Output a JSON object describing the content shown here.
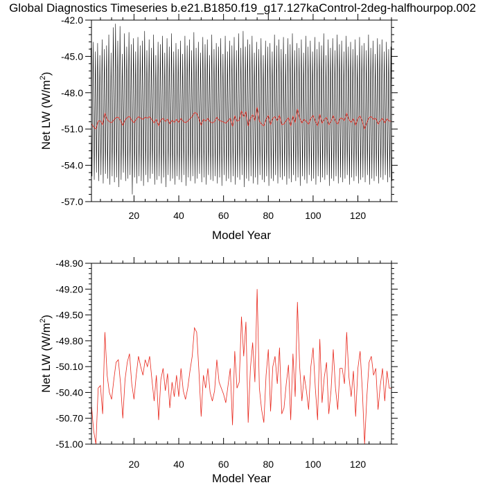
{
  "title": "Global Diagnostics Timeseries b.e21.B1850.f19_g17.127kaControl-2deg-halfhourpop.002",
  "colors": {
    "monthly": "#000000",
    "annual": "#e8261b",
    "axis": "#000000"
  },
  "chart_data": [
    {
      "type": "line",
      "xlabel": "Model Year",
      "ylabel": "Net LW (W/m2)",
      "ylabel_main": "Net LW (W/m",
      "ylabel_sup": "2",
      "ylabel_end": ")",
      "xlim": [
        1,
        135
      ],
      "ylim": [
        -57.0,
        -42.0
      ],
      "x_ticks": [
        "20",
        "40",
        "60",
        "80",
        "100",
        "120"
      ],
      "x_tick_values": [
        20,
        40,
        60,
        80,
        100,
        120
      ],
      "y_ticks": [
        "-42.0",
        "-45.0",
        "-48.0",
        "-51.0",
        "-54.0",
        "-57.0"
      ],
      "y_tick_values": [
        -42.0,
        -45.0,
        -48.0,
        -51.0,
        -54.0,
        -57.0
      ],
      "series": [
        {
          "role": "monthly",
          "description": "seasonal cycle, one max and one min per model year",
          "x": [
            1,
            2,
            3,
            4,
            5,
            6,
            7,
            8,
            9,
            10,
            11,
            12,
            13,
            14,
            15,
            16,
            17,
            18,
            19,
            20,
            21,
            22,
            23,
            24,
            25,
            26,
            27,
            28,
            29,
            30,
            31,
            32,
            33,
            34,
            35,
            36,
            37,
            38,
            39,
            40,
            41,
            42,
            43,
            44,
            45,
            46,
            47,
            48,
            49,
            50,
            51,
            52,
            53,
            54,
            55,
            56,
            57,
            58,
            59,
            60,
            61,
            62,
            63,
            64,
            65,
            66,
            67,
            68,
            69,
            70,
            71,
            72,
            73,
            74,
            75,
            76,
            77,
            78,
            79,
            80,
            81,
            82,
            83,
            84,
            85,
            86,
            87,
            88,
            89,
            90,
            91,
            92,
            93,
            94,
            95,
            96,
            97,
            98,
            99,
            100,
            101,
            102,
            103,
            104,
            105,
            106,
            107,
            108,
            109,
            110,
            111,
            112,
            113,
            114,
            115,
            116,
            117,
            118,
            119,
            120,
            121,
            122,
            123,
            124,
            125,
            126,
            127,
            128,
            129,
            130,
            131,
            132,
            133,
            134,
            135
          ],
          "max": [
            -44.3,
            -43.8,
            -44.6,
            -43.9,
            -44.9,
            -43.6,
            -44.4,
            -44.1,
            -43.2,
            -44.7,
            -42.6,
            -42.3,
            -43.7,
            -42.5,
            -44.8,
            -43.1,
            -44.2,
            -43.0,
            -44.0,
            -43.5,
            -44.6,
            -43.4,
            -44.1,
            -43.7,
            -42.9,
            -44.5,
            -43.6,
            -44.3,
            -43.2,
            -44.9,
            -43.8,
            -44.0,
            -43.3,
            -44.7,
            -43.5,
            -44.2,
            -43.1,
            -44.6,
            -43.9,
            -44.4,
            -43.7,
            -44.8,
            -43.3,
            -44.1,
            -43.6,
            -44.5,
            -43.0,
            -44.3,
            -43.8,
            -44.7,
            -43.4,
            -44.0,
            -43.6,
            -44.9,
            -43.2,
            -44.4,
            -43.9,
            -44.2,
            -43.5,
            -44.8,
            -43.3,
            -44.6,
            -43.7,
            -44.1,
            -43.4,
            -44.5,
            -43.1,
            -44.3,
            -42.9,
            -44.2,
            -43.6,
            -44.0,
            -43.3,
            -44.7,
            -43.8,
            -44.4,
            -43.5,
            -44.9,
            -43.7,
            -44.2,
            -43.9,
            -44.6,
            -43.2,
            -44.1,
            -43.6,
            -44.4,
            -43.4,
            -44.8,
            -43.5,
            -44.0,
            -43.1,
            -44.5,
            -43.9,
            -44.3,
            -43.6,
            -44.7,
            -43.3,
            -44.2,
            -43.7,
            -44.6,
            -43.4,
            -44.4,
            -43.8,
            -44.1,
            -43.1,
            -44.9,
            -43.6,
            -44.3,
            -43.5,
            -44.5,
            -43.2,
            -44.0,
            -43.7,
            -44.6,
            -43.3,
            -44.2,
            -43.8,
            -44.4,
            -43.6,
            -44.9,
            -43.4,
            -44.1,
            -43.9,
            -44.5,
            -43.2,
            -44.3,
            -43.7,
            -44.8,
            -43.5,
            -44.0,
            -43.6,
            -44.6,
            -43.8,
            -44.4,
            -44.2
          ],
          "min": [
            -54.9,
            -55.2,
            -54.6,
            -55.3,
            -54.8,
            -55.5,
            -54.7,
            -55.1,
            -55.6,
            -54.9,
            -55.4,
            -55.0,
            -55.8,
            -55.2,
            -54.6,
            -55.3,
            -55.1,
            -54.8,
            -56.4,
            -55.0,
            -55.5,
            -54.9,
            -55.3,
            -55.7,
            -54.8,
            -55.4,
            -55.1,
            -54.7,
            -55.6,
            -55.2,
            -54.9,
            -55.5,
            -55.0,
            -55.8,
            -54.8,
            -55.3,
            -55.1,
            -55.6,
            -54.9,
            -55.2,
            -55.4,
            -54.8,
            -55.7,
            -55.0,
            -55.3,
            -54.9,
            -55.5,
            -55.1,
            -54.7,
            -55.4,
            -55.0,
            -55.6,
            -54.8,
            -55.2,
            -55.3,
            -54.9,
            -55.5,
            -55.0,
            -55.7,
            -54.8,
            -55.3,
            -55.1,
            -55.4,
            -54.9,
            -55.6,
            -55.0,
            -55.2,
            -54.8,
            -55.8,
            -55.1,
            -55.3,
            -54.9,
            -55.5,
            -55.0,
            -55.6,
            -54.8,
            -55.2,
            -55.4,
            -54.9,
            -55.7,
            -55.1,
            -55.3,
            -54.8,
            -55.5,
            -55.0,
            -55.2,
            -54.9,
            -55.6,
            -55.1,
            -55.4,
            -54.8,
            -55.3,
            -55.0,
            -55.7,
            -54.9,
            -55.2,
            -55.5,
            -54.8,
            -55.3,
            -55.1,
            -55.6,
            -54.9,
            -55.4,
            -55.0,
            -55.2,
            -54.8,
            -55.7,
            -55.1,
            -55.3,
            -54.9,
            -55.5,
            -55.0,
            -55.4,
            -55.1,
            -54.8,
            -55.6,
            -55.0,
            -55.3,
            -54.9,
            -55.5,
            -55.2,
            -55.0,
            -55.4,
            -54.8,
            -55.6,
            -55.1,
            -55.3,
            -54.9,
            -55.5,
            -55.0,
            -55.2,
            -54.8,
            -55.4,
            -55.0,
            -55.3
          ]
        },
        {
          "role": "annual",
          "description": "annual mean",
          "x": [
            1,
            2,
            3,
            4,
            5,
            6,
            7,
            8,
            9,
            10,
            11,
            12,
            13,
            14,
            15,
            16,
            17,
            18,
            19,
            20,
            21,
            22,
            23,
            24,
            25,
            26,
            27,
            28,
            29,
            30,
            31,
            32,
            33,
            34,
            35,
            36,
            37,
            38,
            39,
            40,
            41,
            42,
            43,
            44,
            45,
            46,
            47,
            48,
            49,
            50,
            51,
            52,
            53,
            54,
            55,
            56,
            57,
            58,
            59,
            60,
            61,
            62,
            63,
            64,
            65,
            66,
            67,
            68,
            69,
            70,
            71,
            72,
            73,
            74,
            75,
            76,
            77,
            78,
            79,
            80,
            81,
            82,
            83,
            84,
            85,
            86,
            87,
            88,
            89,
            90,
            91,
            92,
            93,
            94,
            95,
            96,
            97,
            98,
            99,
            100,
            101,
            102,
            103,
            104,
            105,
            106,
            107,
            108,
            109,
            110,
            111,
            112,
            113,
            114,
            115,
            116,
            117,
            118,
            119,
            120,
            121,
            122,
            123,
            124,
            125,
            126,
            127,
            128,
            129,
            130,
            131,
            132,
            133,
            134,
            135
          ],
          "y": [
            -50.55,
            -50.85,
            -51.0,
            -50.35,
            -50.32,
            -50.65,
            -49.7,
            -50.2,
            -50.4,
            -50.48,
            -50.25,
            -50.05,
            -50.02,
            -50.3,
            -50.7,
            -50.25,
            -50.05,
            -49.95,
            -50.3,
            -50.48,
            -50.2,
            -49.98,
            -50.1,
            -50.2,
            -50.02,
            -50.1,
            -49.98,
            -50.25,
            -50.5,
            -50.2,
            -50.72,
            -50.25,
            -50.12,
            -50.38,
            -50.18,
            -50.58,
            -50.28,
            -50.45,
            -50.2,
            -50.45,
            -50.12,
            -50.38,
            -50.48,
            -50.35,
            -50.15,
            -49.98,
            -49.65,
            -49.7,
            -50.15,
            -50.68,
            -50.2,
            -50.35,
            -50.12,
            -50.4,
            -50.5,
            -50.38,
            -50.02,
            -50.28,
            -50.35,
            -50.42,
            -50.52,
            -50.32,
            -50.12,
            -50.78,
            -49.92,
            -50.35,
            -50.28,
            -49.52,
            -49.98,
            -49.58,
            -50.75,
            -50.12,
            -49.82,
            -50.28,
            -49.2,
            -50.35,
            -50.6,
            -50.75,
            -50.2,
            -49.9,
            -50.62,
            -50.1,
            -49.98,
            -50.3,
            -49.88,
            -50.65,
            -50.58,
            -50.3,
            -50.08,
            -50.72,
            -49.95,
            -50.45,
            -49.35,
            -50.1,
            -50.5,
            -50.2,
            -50.38,
            -50.6,
            -50.1,
            -49.88,
            -50.35,
            -50.72,
            -49.78,
            -50.52,
            -50.22,
            -50.05,
            -50.65,
            -50.38,
            -49.9,
            -50.35,
            -50.6,
            -50.12,
            -50.12,
            -50.3,
            -49.7,
            -50.22,
            -50.45,
            -50.15,
            -50.68,
            -50.12,
            -49.92,
            -50.38,
            -51.0,
            -50.45,
            -50.05,
            -49.98,
            -50.2,
            -50.12,
            -50.6,
            -50.32,
            -50.12,
            -50.5,
            -50.15,
            -50.35,
            -50.35
          ]
        }
      ]
    },
    {
      "type": "line",
      "xlabel": "Model Year",
      "ylabel": "Net LW (W/m2)",
      "ylabel_main": "Net LW (W/m",
      "ylabel_sup": "2",
      "ylabel_end": ")",
      "xlim": [
        1,
        135
      ],
      "ylim": [
        -51.0,
        -48.9
      ],
      "x_ticks": [
        "20",
        "40",
        "60",
        "80",
        "100",
        "120"
      ],
      "x_tick_values": [
        20,
        40,
        60,
        80,
        100,
        120
      ],
      "y_ticks": [
        "-48.90",
        "-49.20",
        "-49.50",
        "-49.80",
        "-50.10",
        "-50.40",
        "-50.70",
        "-51.00"
      ],
      "y_tick_values": [
        -48.9,
        -49.2,
        -49.5,
        -49.8,
        -50.1,
        -50.4,
        -50.7,
        -51.0
      ],
      "series": [
        {
          "role": "annual",
          "description": "annual mean (same as red line above)",
          "x": [
            1,
            2,
            3,
            4,
            5,
            6,
            7,
            8,
            9,
            10,
            11,
            12,
            13,
            14,
            15,
            16,
            17,
            18,
            19,
            20,
            21,
            22,
            23,
            24,
            25,
            26,
            27,
            28,
            29,
            30,
            31,
            32,
            33,
            34,
            35,
            36,
            37,
            38,
            39,
            40,
            41,
            42,
            43,
            44,
            45,
            46,
            47,
            48,
            49,
            50,
            51,
            52,
            53,
            54,
            55,
            56,
            57,
            58,
            59,
            60,
            61,
            62,
            63,
            64,
            65,
            66,
            67,
            68,
            69,
            70,
            71,
            72,
            73,
            74,
            75,
            76,
            77,
            78,
            79,
            80,
            81,
            82,
            83,
            84,
            85,
            86,
            87,
            88,
            89,
            90,
            91,
            92,
            93,
            94,
            95,
            96,
            97,
            98,
            99,
            100,
            101,
            102,
            103,
            104,
            105,
            106,
            107,
            108,
            109,
            110,
            111,
            112,
            113,
            114,
            115,
            116,
            117,
            118,
            119,
            120,
            121,
            122,
            123,
            124,
            125,
            126,
            127,
            128,
            129,
            130,
            131,
            132,
            133,
            134,
            135
          ],
          "y": [
            -50.55,
            -50.85,
            -51.0,
            -50.35,
            -50.32,
            -50.65,
            -49.7,
            -50.2,
            -50.4,
            -50.48,
            -50.25,
            -50.05,
            -50.02,
            -50.3,
            -50.7,
            -50.25,
            -50.05,
            -49.95,
            -50.3,
            -50.48,
            -50.2,
            -49.98,
            -50.1,
            -50.2,
            -50.02,
            -50.1,
            -49.98,
            -50.25,
            -50.5,
            -50.2,
            -50.72,
            -50.25,
            -50.12,
            -50.38,
            -50.18,
            -50.58,
            -50.28,
            -50.45,
            -50.2,
            -50.45,
            -50.12,
            -50.38,
            -50.48,
            -50.35,
            -50.15,
            -49.98,
            -49.65,
            -49.7,
            -50.15,
            -50.68,
            -50.2,
            -50.35,
            -50.12,
            -50.4,
            -50.5,
            -50.38,
            -50.02,
            -50.28,
            -50.35,
            -50.42,
            -50.52,
            -50.32,
            -50.12,
            -50.78,
            -49.92,
            -50.35,
            -50.28,
            -49.52,
            -49.98,
            -49.58,
            -50.75,
            -50.12,
            -49.82,
            -50.28,
            -49.2,
            -50.35,
            -50.6,
            -50.75,
            -50.2,
            -49.9,
            -50.62,
            -50.1,
            -49.98,
            -50.3,
            -49.88,
            -50.65,
            -50.58,
            -50.3,
            -50.08,
            -50.72,
            -49.95,
            -50.45,
            -49.35,
            -50.1,
            -50.5,
            -50.2,
            -50.38,
            -50.6,
            -50.1,
            -49.88,
            -50.35,
            -50.72,
            -49.78,
            -50.52,
            -50.22,
            -50.05,
            -50.65,
            -50.38,
            -49.9,
            -50.35,
            -50.6,
            -50.12,
            -50.12,
            -50.3,
            -49.7,
            -50.22,
            -50.45,
            -50.15,
            -50.68,
            -50.12,
            -49.92,
            -50.38,
            -51.0,
            -50.45,
            -50.05,
            -49.98,
            -50.2,
            -50.12,
            -50.6,
            -50.32,
            -50.12,
            -50.5,
            -50.15,
            -50.35,
            -50.35
          ]
        }
      ]
    }
  ]
}
